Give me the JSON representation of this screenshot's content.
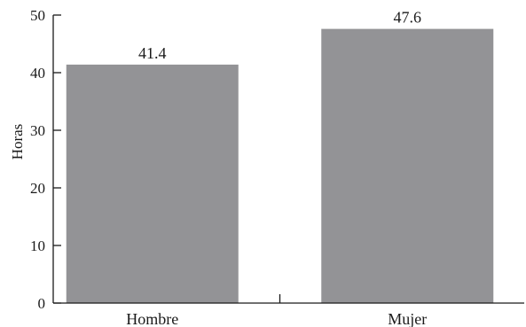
{
  "chart_data": {
    "type": "bar",
    "title": "",
    "xlabel": "",
    "ylabel": "Horas",
    "ylim": [
      0,
      50
    ],
    "yticks": [
      0,
      10,
      20,
      30,
      40,
      50
    ],
    "categories": [
      "Hombre",
      "Mujer"
    ],
    "values": [
      41.4,
      47.6
    ],
    "data_labels": [
      "41.4",
      "47.6"
    ],
    "bar_color": "#939396",
    "grid": false,
    "legend": "none"
  }
}
